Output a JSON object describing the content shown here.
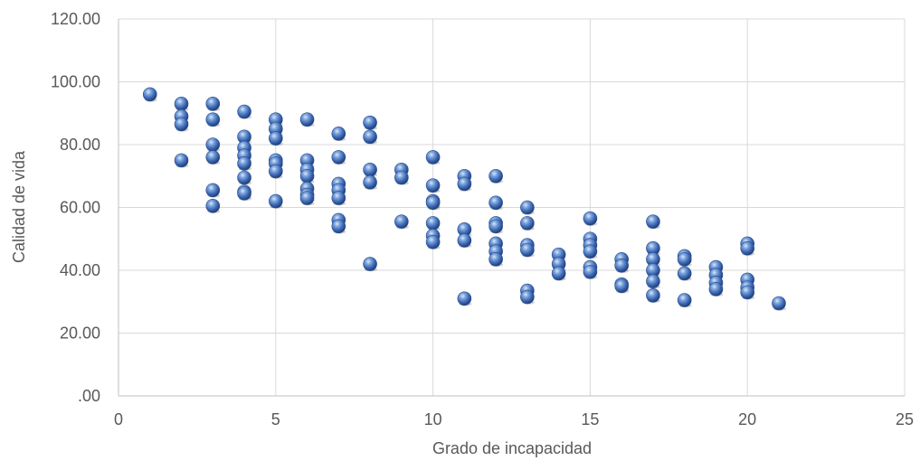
{
  "chart_data": {
    "type": "scatter",
    "title": "",
    "xlabel": "Grado de incapacidad",
    "ylabel": "Calidad de vida",
    "xlim": [
      0,
      25
    ],
    "ylim": [
      0,
      120
    ],
    "x_ticks": [
      0,
      5,
      10,
      15,
      20,
      25
    ],
    "x_tick_labels": [
      "0",
      "5",
      "10",
      "15",
      "20",
      "25"
    ],
    "y_ticks": [
      0,
      20,
      40,
      60,
      80,
      100,
      120
    ],
    "y_tick_labels": [
      ".00",
      "20.00",
      "40.00",
      "60.00",
      "80.00",
      "100.00",
      "120.00"
    ],
    "grid": true,
    "marker_color": "#4472c4",
    "points": [
      [
        1,
        96
      ],
      [
        2,
        93
      ],
      [
        2,
        89
      ],
      [
        2,
        86.5
      ],
      [
        2,
        75
      ],
      [
        3,
        93
      ],
      [
        3,
        88
      ],
      [
        3,
        80
      ],
      [
        3,
        76
      ],
      [
        3,
        65.5
      ],
      [
        3,
        60.5
      ],
      [
        4,
        90.5
      ],
      [
        4,
        82.5
      ],
      [
        4,
        79
      ],
      [
        4,
        76.5
      ],
      [
        4,
        74
      ],
      [
        4,
        69.5
      ],
      [
        4,
        65
      ],
      [
        4,
        64.5
      ],
      [
        5,
        88
      ],
      [
        5,
        85
      ],
      [
        5,
        82
      ],
      [
        5,
        75
      ],
      [
        5,
        74
      ],
      [
        5,
        71.5
      ],
      [
        5,
        62
      ],
      [
        6,
        88
      ],
      [
        6,
        75
      ],
      [
        6,
        72
      ],
      [
        6,
        70
      ],
      [
        6,
        66
      ],
      [
        6,
        64
      ],
      [
        6,
        63
      ],
      [
        7,
        83.5
      ],
      [
        7,
        76
      ],
      [
        7,
        67.5
      ],
      [
        7,
        65.5
      ],
      [
        7,
        63
      ],
      [
        7,
        56
      ],
      [
        7,
        54
      ],
      [
        8,
        87
      ],
      [
        8,
        82.5
      ],
      [
        8,
        72
      ],
      [
        8,
        68
      ],
      [
        8,
        42
      ],
      [
        9,
        72
      ],
      [
        9,
        69.5
      ],
      [
        9,
        55.5
      ],
      [
        10,
        76
      ],
      [
        10,
        67
      ],
      [
        10,
        62
      ],
      [
        10,
        61.5
      ],
      [
        10,
        55
      ],
      [
        10,
        51
      ],
      [
        10,
        49
      ],
      [
        11,
        70
      ],
      [
        11,
        67.5
      ],
      [
        11,
        53
      ],
      [
        11,
        49.5
      ],
      [
        11,
        31
      ],
      [
        12,
        70
      ],
      [
        12,
        61.5
      ],
      [
        12,
        55
      ],
      [
        12,
        54
      ],
      [
        12,
        48.5
      ],
      [
        12,
        46
      ],
      [
        12,
        43.5
      ],
      [
        13,
        60
      ],
      [
        13,
        55
      ],
      [
        13,
        48
      ],
      [
        13,
        46.5
      ],
      [
        13,
        33.5
      ],
      [
        13,
        31.5
      ],
      [
        14,
        45
      ],
      [
        14,
        42
      ],
      [
        14,
        39
      ],
      [
        15,
        56.5
      ],
      [
        15,
        50
      ],
      [
        15,
        48
      ],
      [
        15,
        46
      ],
      [
        15,
        41
      ],
      [
        15,
        39.5
      ],
      [
        16,
        43.5
      ],
      [
        16,
        41.5
      ],
      [
        16,
        35.5
      ],
      [
        16,
        35
      ],
      [
        17,
        55.5
      ],
      [
        17,
        47
      ],
      [
        17,
        43.5
      ],
      [
        17,
        40
      ],
      [
        17,
        36.5
      ],
      [
        17,
        32
      ],
      [
        18,
        44.5
      ],
      [
        18,
        43.5
      ],
      [
        18,
        39
      ],
      [
        18,
        30.5
      ],
      [
        19,
        41
      ],
      [
        19,
        38.5
      ],
      [
        19,
        36
      ],
      [
        19,
        34
      ],
      [
        20,
        48.5
      ],
      [
        20,
        47
      ],
      [
        20,
        37
      ],
      [
        20,
        34.5
      ],
      [
        20,
        33
      ],
      [
        21,
        29.5
      ]
    ]
  }
}
